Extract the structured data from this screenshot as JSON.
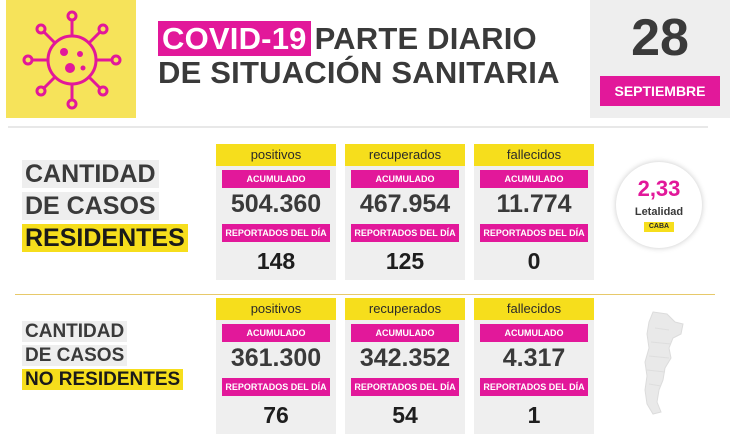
{
  "header": {
    "title_highlight": "COVID-19",
    "title_line1_rest": "PARTE DIARIO",
    "title_line2": "DE SITUACIÓN SANITARIA",
    "day": "28",
    "month": "SEPTIEMBRE"
  },
  "residentes": {
    "title_lines": [
      "CANTIDAD",
      "DE CASOS",
      "RESIDENTES"
    ],
    "cards": [
      {
        "label": "positivos",
        "acc_label": "ACUMULADO",
        "acc_value": "504.360",
        "day_label": "REPORTADOS DEL DÍA",
        "day_value": "148"
      },
      {
        "label": "recuperados",
        "acc_label": "ACUMULADO",
        "acc_value": "467.954",
        "day_label": "REPORTADOS DEL DÍA",
        "day_value": "125"
      },
      {
        "label": "fallecidos",
        "acc_label": "ACUMULADO",
        "acc_value": "11.774",
        "day_label": "REPORTADOS DEL DÍA",
        "day_value": "0"
      }
    ]
  },
  "no_residentes": {
    "title_lines": [
      "CANTIDAD",
      "DE CASOS",
      "NO RESIDENTES"
    ],
    "cards": [
      {
        "label": "positivos",
        "acc_label": "ACUMULADO",
        "acc_value": "361.300",
        "day_label": "REPORTADOS DEL DÍA",
        "day_value": "76"
      },
      {
        "label": "recuperados",
        "acc_label": "ACUMULADO",
        "acc_value": "342.352",
        "day_label": "REPORTADOS DEL DÍA",
        "day_value": "54"
      },
      {
        "label": "fallecidos",
        "acc_label": "ACUMULADO",
        "acc_value": "4.317",
        "day_label": "REPORTADOS DEL DÍA",
        "day_value": "1"
      }
    ]
  },
  "letalidad": {
    "value": "2,33",
    "label": "Letalidad",
    "tag": "CABA"
  },
  "colors": {
    "magenta": "#e2189a",
    "yellow": "#f6de1c",
    "gray": "#efefef",
    "text": "#3a3a3a"
  },
  "icons": {
    "logo": "virus-icon",
    "map": "argentina-map-icon"
  }
}
